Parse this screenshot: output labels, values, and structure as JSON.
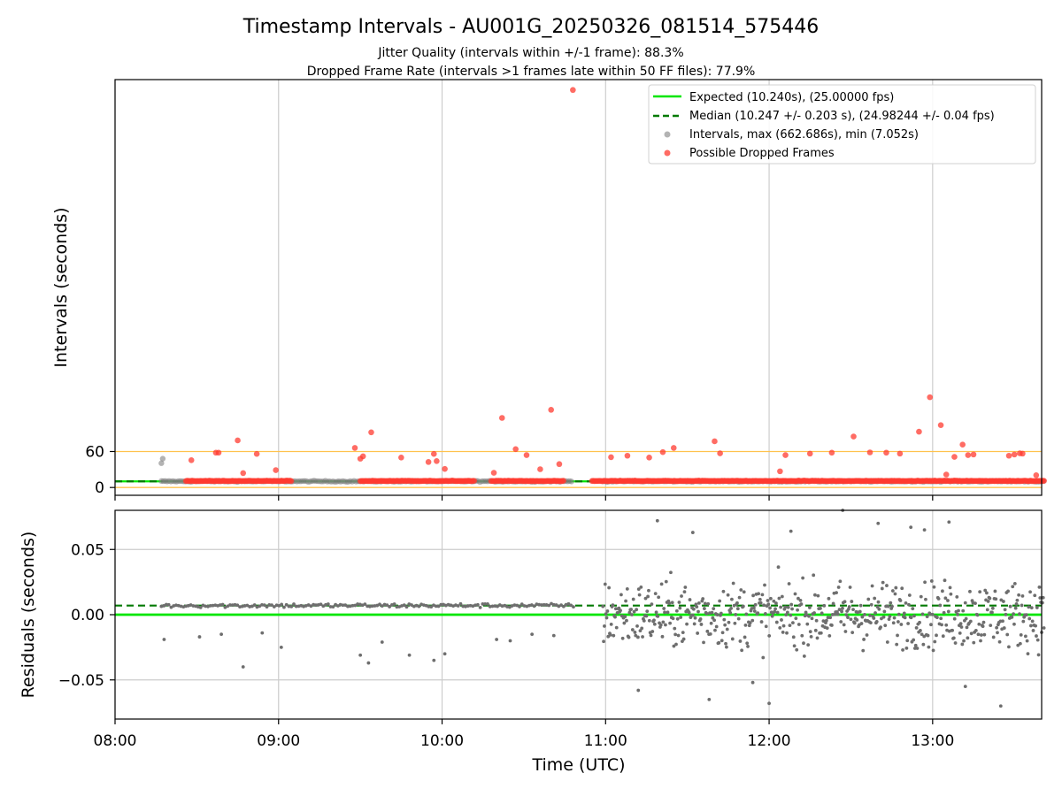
{
  "chart_data": [
    {
      "type": "scatter",
      "title": "Timestamp Intervals - AU001G_20250326_081514_575446",
      "subtitle_lines": [
        "Jitter Quality (intervals within +/-1 frame): 88.3%",
        "Dropped Frame Rate (intervals >1 frames late within 50 FF files): 77.9%"
      ],
      "ylabel": "Intervals (seconds)",
      "xlim": [
        "08:00",
        "13:40"
      ],
      "ylim": [
        -13,
        680
      ],
      "yticks": [
        0,
        60
      ],
      "ytick_labels": [
        "0",
        "60"
      ],
      "xticks": [
        "08:00",
        "09:00",
        "10:00",
        "11:00",
        "12:00",
        "13:00"
      ],
      "grid": "vertical",
      "reference_lines": {
        "expected": 10.24,
        "median": 10.247,
        "threshold": 60,
        "lower": 0
      },
      "legend": {
        "placement": "upper right",
        "entries": [
          {
            "label": "Expected (10.240s), (25.00000 fps)",
            "kind": "line",
            "color": "#00e600"
          },
          {
            "label": "Median (10.247 +/- 0.203 s), (24.98244 +/- 0.04 fps)",
            "kind": "dashed",
            "color": "#007a00"
          },
          {
            "label": "Intervals, max (662.686s), min (7.052s)",
            "kind": "marker",
            "color": "#808080"
          },
          {
            "label": "Possible Dropped Frames",
            "kind": "marker",
            "color": "#ff3b30"
          }
        ]
      },
      "series": [
        {
          "name": "Intervals, max (662.686s), min (7.052s)",
          "color": "#808080",
          "note": "dense band of intervals near the median (~10.25 s) across all active periods",
          "points": [
            [
              "08:17",
              40.5
            ],
            [
              "08:17.5",
              48.0
            ],
            [
              "08:20",
              10.3
            ],
            [
              "08:40",
              10.3
            ],
            [
              "09:10",
              10.3
            ],
            [
              "09:30",
              10.3
            ],
            [
              "10:10",
              10.3
            ],
            [
              "10:40",
              10.3
            ],
            [
              "11:20",
              10.3
            ],
            [
              "11:40",
              10.3
            ],
            [
              "12:10",
              10.3
            ],
            [
              "12:40",
              10.3
            ],
            [
              "13:20",
              10.3
            ]
          ]
        },
        {
          "name": "Possible Dropped Frames",
          "color": "#ff3b30",
          "outliers": [
            [
              "08:28",
              45.5
            ],
            [
              "08:37",
              58.0
            ],
            [
              "08:38",
              58.0
            ],
            [
              "08:45",
              78.5
            ],
            [
              "08:47",
              24.0
            ],
            [
              "08:52",
              56.0
            ],
            [
              "08:59",
              29.0
            ],
            [
              "09:28",
              66.0
            ],
            [
              "09:30",
              48.0
            ],
            [
              "09:31",
              52.0
            ],
            [
              "09:34",
              92.0
            ],
            [
              "09:45",
              50.0
            ],
            [
              "09:55",
              42.5
            ],
            [
              "09:57",
              56.0
            ],
            [
              "09:58",
              44.0
            ],
            [
              "10:01",
              31.0
            ],
            [
              "10:19",
              24.5
            ],
            [
              "10:22",
              116.0
            ],
            [
              "10:27",
              64.0
            ],
            [
              "10:31",
              54.0
            ],
            [
              "10:36",
              30.5
            ],
            [
              "10:40",
              129.5
            ],
            [
              "10:43",
              39.0
            ],
            [
              "10:48",
              662.7
            ],
            [
              "11:02",
              50.5
            ],
            [
              "11:08",
              53.0
            ],
            [
              "11:16",
              50.0
            ],
            [
              "11:21",
              59.0
            ],
            [
              "11:25",
              66.0
            ],
            [
              "11:40",
              77.0
            ],
            [
              "11:42",
              57.0
            ],
            [
              "12:04",
              27.0
            ],
            [
              "12:06",
              54.0
            ],
            [
              "12:15",
              56.5
            ],
            [
              "12:23",
              58.0
            ],
            [
              "12:31",
              85.0
            ],
            [
              "12:37",
              58.5
            ],
            [
              "12:43",
              58.0
            ],
            [
              "12:48",
              56.5
            ],
            [
              "12:55",
              93.0
            ],
            [
              "12:59",
              150.5
            ],
            [
              "13:03",
              104.0
            ],
            [
              "13:05",
              21.5
            ],
            [
              "13:08",
              51.0
            ],
            [
              "13:11",
              71.5
            ],
            [
              "13:13",
              54.0
            ],
            [
              "13:15",
              55.0
            ],
            [
              "13:28",
              53.0
            ],
            [
              "13:30",
              55.0
            ],
            [
              "13:32",
              57.0
            ],
            [
              "13:33",
              56.5
            ],
            [
              "13:38",
              20.5
            ]
          ],
          "dense_ranges_near_median": [
            [
              "08:26",
              "08:48"
            ],
            [
              "08:48",
              "09:05"
            ],
            [
              "09:30",
              "09:38"
            ],
            [
              "09:38",
              "10:12"
            ],
            [
              "10:18",
              "10:45"
            ],
            [
              "10:55",
              "11:45"
            ],
            [
              "11:45",
              "12:05"
            ],
            [
              "12:05",
              "13:41"
            ]
          ]
        }
      ]
    },
    {
      "type": "scatter",
      "xlabel": "Time (UTC)",
      "ylabel": "Residuals (seconds)",
      "xlim": [
        "08:00",
        "13:40"
      ],
      "ylim": [
        -0.08,
        0.08
      ],
      "yticks": [
        -0.05,
        0.0,
        0.05
      ],
      "ytick_labels": [
        "−0.05",
        "0.00",
        "0.05"
      ],
      "xticks": [
        "08:00",
        "09:00",
        "10:00",
        "11:00",
        "12:00",
        "13:00"
      ],
      "xtick_labels": [
        "08:00",
        "09:00",
        "10:00",
        "11:00",
        "12:00",
        "13:00"
      ],
      "grid": "both",
      "reference_lines": {
        "expected": 0.0,
        "median": 0.007
      },
      "series": [
        {
          "name": "residuals",
          "color": "#6e6e6e",
          "segments": [
            {
              "from": "08:17",
              "to": "10:49",
              "center": 0.007,
              "spread": 0.0015
            },
            {
              "from": "10:59",
              "to": "13:41",
              "center": 0.0,
              "spread": 0.045
            }
          ],
          "outliers": [
            [
              "08:18",
              -0.019
            ],
            [
              "08:31",
              -0.017
            ],
            [
              "08:39",
              -0.015
            ],
            [
              "08:47",
              -0.04
            ],
            [
              "08:54",
              -0.014
            ],
            [
              "09:01",
              -0.025
            ],
            [
              "09:30",
              -0.031
            ],
            [
              "09:33",
              -0.037
            ],
            [
              "09:38",
              -0.021
            ],
            [
              "09:48",
              -0.031
            ],
            [
              "09:57",
              -0.035
            ],
            [
              "10:01",
              -0.03
            ],
            [
              "10:20",
              -0.019
            ],
            [
              "10:25",
              -0.02
            ],
            [
              "10:33",
              -0.015
            ],
            [
              "10:41",
              -0.016
            ],
            [
              "11:12",
              -0.058
            ],
            [
              "11:19",
              0.072
            ],
            [
              "11:32",
              0.063
            ],
            [
              "11:38",
              -0.065
            ],
            [
              "11:54",
              -0.052
            ],
            [
              "12:00",
              -0.068
            ],
            [
              "12:08",
              0.064
            ],
            [
              "12:27",
              0.08
            ],
            [
              "12:40",
              0.07
            ],
            [
              "12:52",
              0.067
            ],
            [
              "12:57",
              0.065
            ],
            [
              "13:06",
              0.071
            ],
            [
              "13:12",
              -0.055
            ],
            [
              "13:25",
              -0.07
            ]
          ]
        }
      ]
    }
  ]
}
